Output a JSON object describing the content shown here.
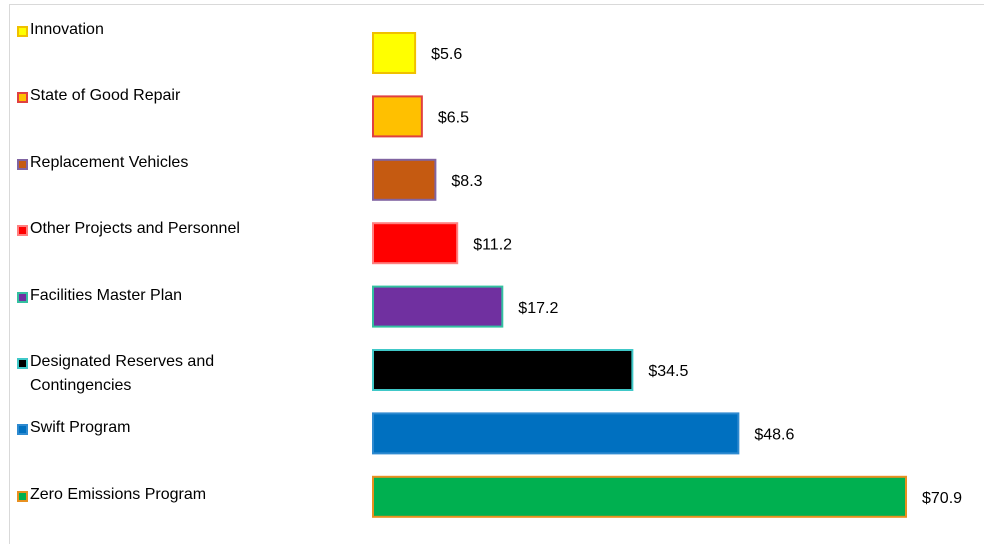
{
  "chart_data": {
    "type": "bar",
    "orientation": "horizontal",
    "categories": [
      "Innovation",
      "State of Good Repair",
      "Replacement Vehicles",
      "Other Projects and Personnel",
      "Facilities Master Plan",
      "Designated Reserves and Contingencies",
      "Swift Program",
      "Zero Emissions Program"
    ],
    "values": [
      5.6,
      6.5,
      8.3,
      11.2,
      17.2,
      34.5,
      48.6,
      70.9
    ],
    "value_labels": [
      "$5.6",
      "$6.5",
      "$8.3",
      "$11.2",
      "$17.2",
      "$34.5",
      "$48.6",
      "$70.9"
    ],
    "colors": [
      "#ffff00",
      "#ffc000",
      "#c55a11",
      "#ff0000",
      "#7030a0",
      "#000000",
      "#0070c0",
      "#00b050"
    ],
    "edge_colors": [
      "#f0c000",
      "#e04040",
      "#8064a2",
      "#ff8080",
      "#33c0a0",
      "#40c8c8",
      "#2e8ad0",
      "#e89020"
    ]
  }
}
